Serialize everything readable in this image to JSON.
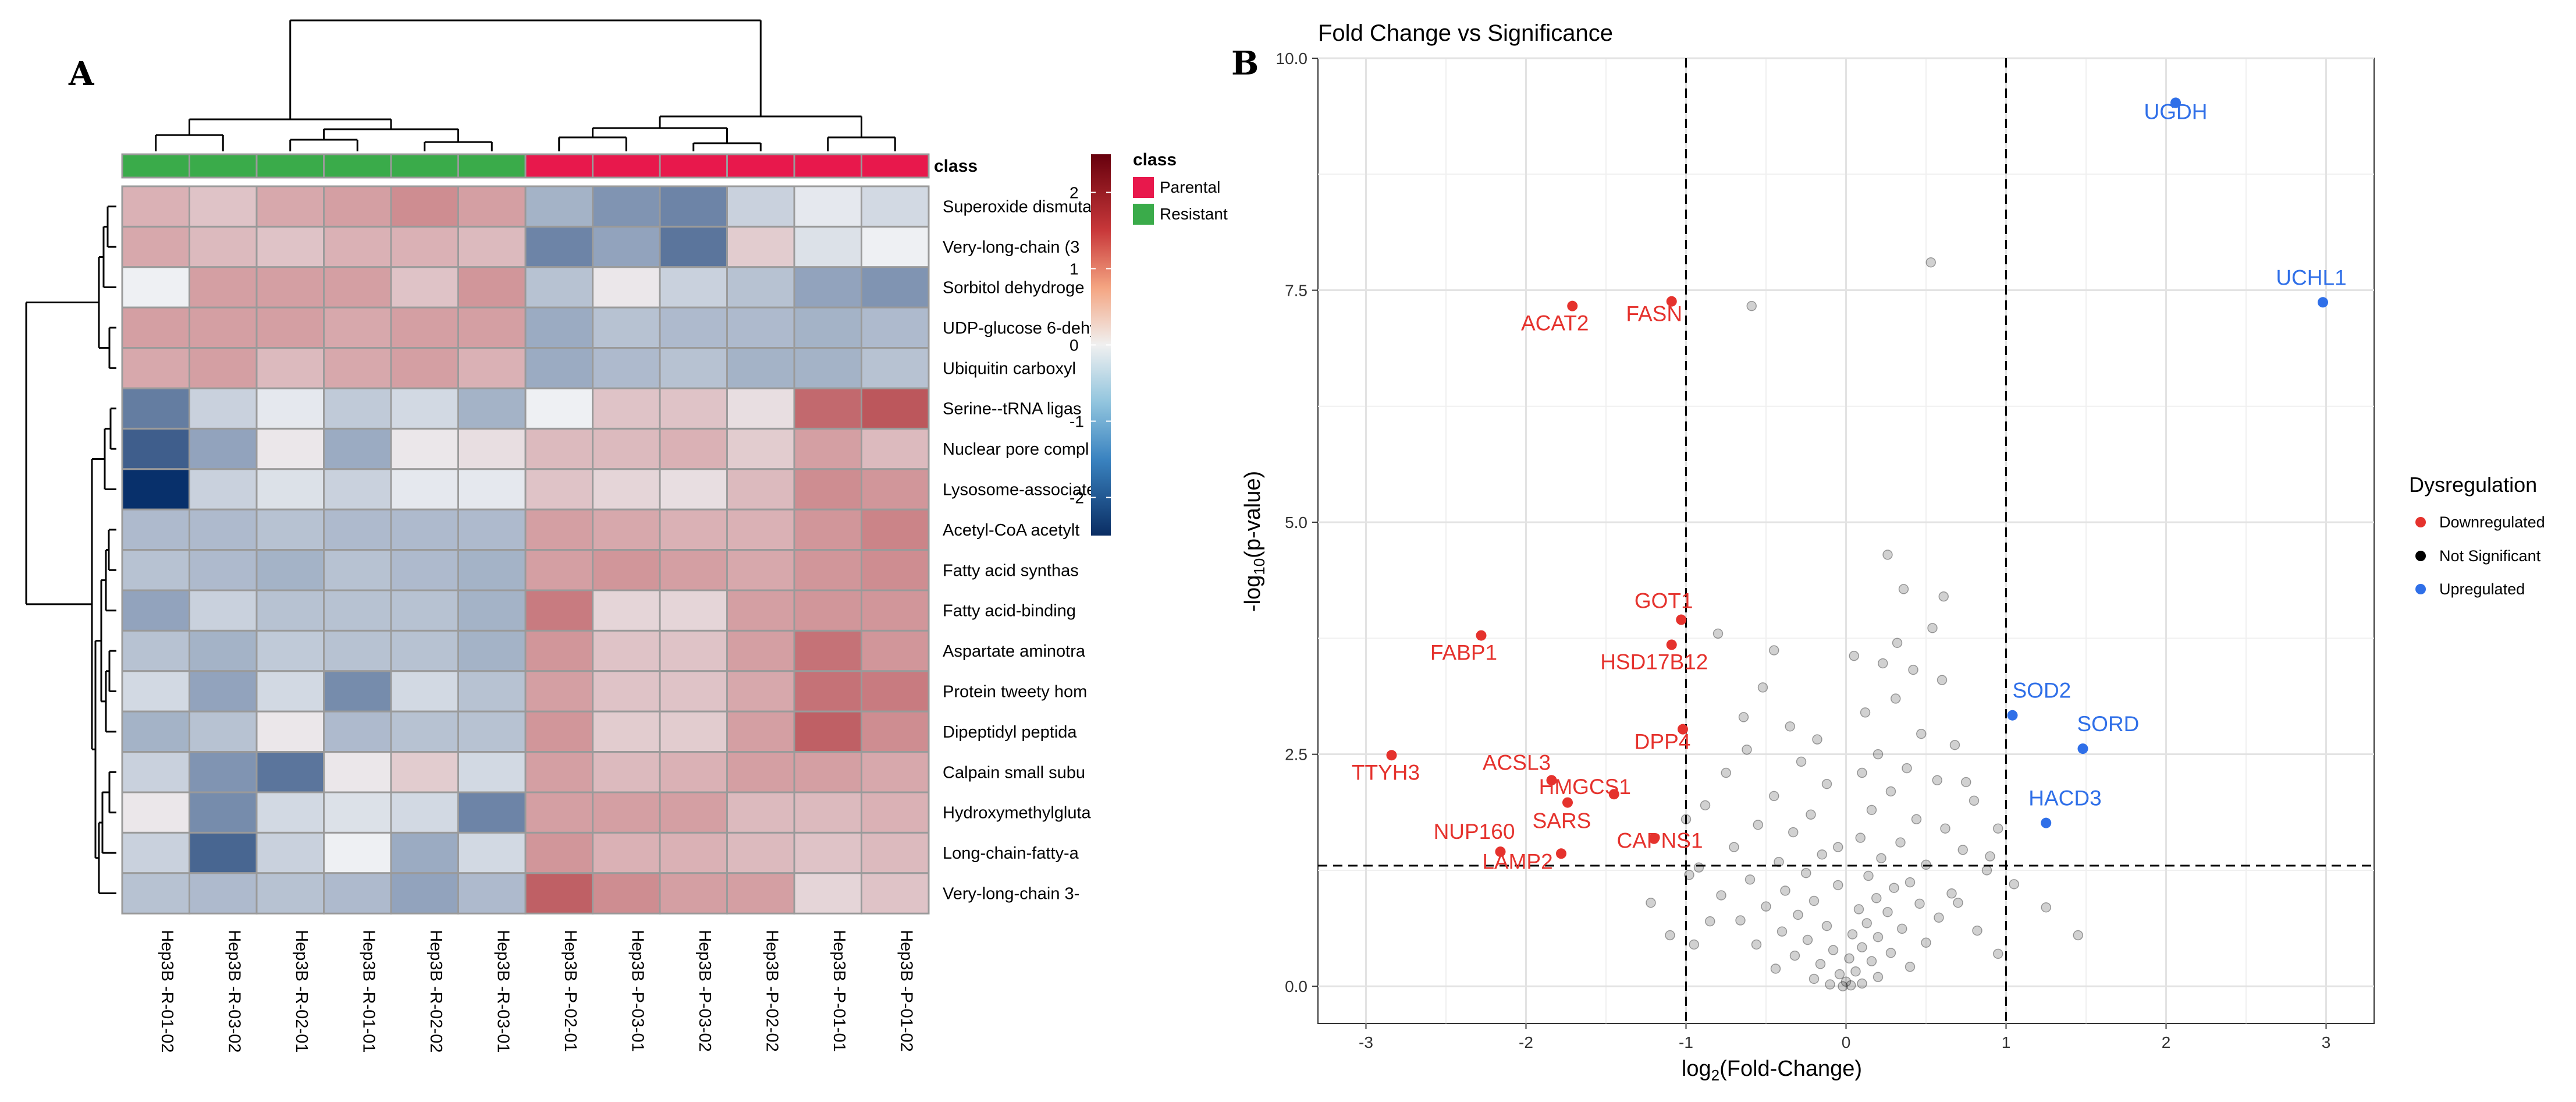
{
  "colors": {
    "parental": "#e8184c",
    "resistant": "#3aab4a",
    "down": "#e5322d",
    "up": "#2f6fe8",
    "ns": "#000000",
    "hm_low": "#08306b",
    "hm_mid": "#eef0f3",
    "hm_high": "#a50f15"
  },
  "chart_data": [
    {
      "type": "heatmap",
      "panel_letter": "A",
      "class_label": "class",
      "columns": [
        "Hep3B -R-01-02",
        "Hep3B -R-03-02",
        "Hep3B -R-02-01",
        "Hep3B -R-01-01",
        "Hep3B -R-02-02",
        "Hep3B -R-03-01",
        "Hep3B -P-02-01",
        "Hep3B -P-03-01",
        "Hep3B -P-03-02",
        "Hep3B -P-02-02",
        "Hep3B -P-01-01",
        "Hep3B -P-01-02"
      ],
      "column_classes": [
        "Resistant",
        "Resistant",
        "Resistant",
        "Resistant",
        "Resistant",
        "Resistant",
        "Parental",
        "Parental",
        "Parental",
        "Parental",
        "Parental",
        "Parental"
      ],
      "rows": [
        "Superoxide dismuta",
        "Very-long-chain (3",
        "Sorbitol dehydroge",
        "UDP-glucose 6-dehy",
        "Ubiquitin carboxyl",
        "Serine--tRNA ligas",
        "Nuclear pore compl",
        "Lysosome-associate",
        "Acetyl-CoA acetylt",
        "Fatty acid synthas",
        "Fatty acid-binding",
        "Aspartate aminotra",
        "Protein tweety hom",
        "Dipeptidyl peptida",
        "Calpain small subu",
        "Hydroxymethylgluta",
        "Long-chain-fatty-a",
        "Very-long-chain 3-"
      ],
      "values": [
        [
          0.7,
          0.5,
          0.8,
          0.9,
          1.1,
          0.9,
          -0.8,
          -1.2,
          -1.4,
          -0.4,
          -0.1,
          -0.3
        ],
        [
          0.8,
          0.6,
          0.5,
          0.7,
          0.7,
          0.6,
          -1.4,
          -1.0,
          -1.6,
          0.4,
          -0.2,
          0.0
        ],
        [
          0.0,
          0.9,
          0.9,
          0.9,
          0.5,
          1.0,
          -0.6,
          0.1,
          -0.4,
          -0.6,
          -1.0,
          -1.2
        ],
        [
          0.9,
          0.9,
          0.9,
          0.8,
          0.9,
          0.9,
          -0.9,
          -0.6,
          -0.7,
          -0.7,
          -0.8,
          -0.7
        ],
        [
          0.8,
          0.9,
          0.6,
          0.8,
          0.9,
          0.7,
          -0.9,
          -0.7,
          -0.6,
          -0.8,
          -0.8,
          -0.6
        ],
        [
          -1.5,
          -0.4,
          -0.1,
          -0.5,
          -0.3,
          -0.8,
          0.0,
          0.5,
          0.5,
          0.2,
          1.5,
          1.7
        ],
        [
          -1.9,
          -1.0,
          0.1,
          -0.9,
          0.1,
          0.2,
          0.6,
          0.6,
          0.7,
          0.4,
          0.9,
          0.6
        ],
        [
          -2.5,
          -0.4,
          -0.2,
          -0.4,
          -0.1,
          -0.1,
          0.5,
          0.3,
          0.2,
          0.6,
          1.1,
          1.0
        ],
        [
          -0.7,
          -0.7,
          -0.6,
          -0.7,
          -0.7,
          -0.7,
          0.9,
          0.8,
          0.7,
          0.7,
          1.0,
          1.2
        ],
        [
          -0.6,
          -0.7,
          -0.8,
          -0.6,
          -0.7,
          -0.8,
          0.9,
          1.0,
          0.9,
          0.8,
          1.0,
          1.1
        ],
        [
          -1.0,
          -0.4,
          -0.6,
          -0.6,
          -0.6,
          -0.8,
          1.3,
          0.3,
          0.3,
          0.9,
          1.0,
          1.0
        ],
        [
          -0.6,
          -0.8,
          -0.5,
          -0.6,
          -0.6,
          -0.8,
          1.0,
          0.5,
          0.5,
          0.9,
          1.4,
          1.0
        ],
        [
          -0.3,
          -1.0,
          -0.3,
          -1.3,
          -0.3,
          -0.6,
          0.9,
          0.5,
          0.5,
          0.8,
          1.4,
          1.3
        ],
        [
          -0.8,
          -0.6,
          0.1,
          -0.7,
          -0.6,
          -0.6,
          1.0,
          0.4,
          0.4,
          0.9,
          1.6,
          1.1
        ],
        [
          -0.4,
          -1.2,
          -1.6,
          0.1,
          0.4,
          -0.3,
          0.9,
          0.6,
          0.7,
          0.9,
          0.9,
          0.8
        ],
        [
          0.1,
          -1.3,
          -0.3,
          -0.2,
          -0.3,
          -1.4,
          0.9,
          0.9,
          0.9,
          0.6,
          0.6,
          0.7
        ],
        [
          -0.4,
          -1.8,
          -0.4,
          0.0,
          -0.9,
          -0.3,
          1.0,
          0.7,
          0.7,
          0.6,
          0.5,
          0.6
        ],
        [
          -0.6,
          -0.7,
          -0.6,
          -0.7,
          -1.0,
          -0.7,
          1.6,
          1.1,
          0.9,
          0.9,
          0.3,
          0.5
        ]
      ],
      "color_scale": {
        "min": -2.5,
        "max": 2.5,
        "ticks": [
          2,
          1,
          0,
          -1,
          -2
        ]
      },
      "class_legend": {
        "title": "class",
        "entries": [
          "Parental",
          "Resistant"
        ]
      }
    },
    {
      "type": "scatter",
      "panel_letter": "B",
      "title": "Fold Change vs Significance",
      "xlabel_main": "log",
      "xlabel_sub": "2",
      "xlabel_tail": "(Fold-Change)",
      "ylabel_main": "-log",
      "ylabel_sub": "10",
      "ylabel_tail": "(p-value)",
      "xlim": [
        -3.3,
        3.3
      ],
      "ylim": [
        -0.4,
        10.0
      ],
      "xticks": [
        -3,
        -2,
        -1,
        0,
        1,
        2,
        3
      ],
      "yticks": [
        0.0,
        2.5,
        5.0,
        7.5,
        10.0
      ],
      "ytick_labels": [
        "0.0",
        "2.5",
        "5.0",
        "7.5",
        "10.0"
      ],
      "vlines": [
        -1,
        1
      ],
      "hline": 1.3,
      "legend": {
        "title": "Dysregulation",
        "entries": [
          "Downregulated",
          "Not Significant",
          "Upregulated"
        ]
      },
      "labeled_points": [
        {
          "label": "UGDH",
          "x": 2.06,
          "y": 9.52,
          "group": "up"
        },
        {
          "label": "UCHL1",
          "x": 2.98,
          "y": 7.37,
          "group": "up"
        },
        {
          "label": "SOD2",
          "x": 1.04,
          "y": 2.92,
          "group": "up"
        },
        {
          "label": "SORD",
          "x": 1.48,
          "y": 2.56,
          "group": "up"
        },
        {
          "label": "HACD3",
          "x": 1.25,
          "y": 1.76,
          "group": "up"
        },
        {
          "label": "ACAT2",
          "x": -1.71,
          "y": 7.33,
          "group": "down"
        },
        {
          "label": "FASN",
          "x": -1.09,
          "y": 7.38,
          "group": "down"
        },
        {
          "label": "GOT1",
          "x": -1.03,
          "y": 3.95,
          "group": "down"
        },
        {
          "label": "FABP1",
          "x": -2.28,
          "y": 3.78,
          "group": "down"
        },
        {
          "label": "HSD17B12",
          "x": -1.09,
          "y": 3.68,
          "group": "down"
        },
        {
          "label": "DPP4",
          "x": -1.02,
          "y": 2.77,
          "group": "down"
        },
        {
          "label": "TTYH3",
          "x": -2.84,
          "y": 2.49,
          "group": "down"
        },
        {
          "label": "ACSL3",
          "x": -1.84,
          "y": 2.22,
          "group": "down"
        },
        {
          "label": "HMGCS1",
          "x": -1.45,
          "y": 2.07,
          "group": "down"
        },
        {
          "label": "SARS",
          "x": -1.74,
          "y": 1.98,
          "group": "down"
        },
        {
          "label": "CAPNS1",
          "x": -1.2,
          "y": 1.59,
          "group": "down"
        },
        {
          "label": "NUP160",
          "x": -2.16,
          "y": 1.45,
          "group": "down"
        },
        {
          "label": "LAMP2",
          "x": -1.78,
          "y": 1.43,
          "group": "down"
        }
      ],
      "ns_points": [
        [
          0.53,
          7.8
        ],
        [
          -0.59,
          7.33
        ],
        [
          0.26,
          4.65
        ],
        [
          0.36,
          4.28
        ],
        [
          0.61,
          4.2
        ],
        [
          -0.8,
          3.8
        ],
        [
          0.54,
          3.86
        ],
        [
          -0.45,
          3.62
        ],
        [
          0.05,
          3.56
        ],
        [
          0.23,
          3.48
        ],
        [
          0.42,
          3.41
        ],
        [
          -0.52,
          3.22
        ],
        [
          0.31,
          3.1
        ],
        [
          0.12,
          2.95
        ],
        [
          -0.35,
          2.8
        ],
        [
          0.47,
          2.72
        ],
        [
          -0.18,
          2.66
        ],
        [
          0.68,
          2.6
        ],
        [
          -0.62,
          2.55
        ],
        [
          0.2,
          2.5
        ],
        [
          -0.28,
          2.42
        ],
        [
          0.38,
          2.35
        ],
        [
          -0.75,
          2.3
        ],
        [
          0.57,
          2.22
        ],
        [
          -0.12,
          2.18
        ],
        [
          0.28,
          2.1
        ],
        [
          -0.45,
          2.05
        ],
        [
          0.8,
          2.0
        ],
        [
          -0.88,
          1.95
        ],
        [
          0.16,
          1.9
        ],
        [
          -0.22,
          1.85
        ],
        [
          0.44,
          1.8
        ],
        [
          -0.55,
          1.74
        ],
        [
          0.62,
          1.7
        ],
        [
          -0.33,
          1.66
        ],
        [
          0.09,
          1.6
        ],
        [
          0.34,
          1.55
        ],
        [
          -0.7,
          1.5
        ],
        [
          0.73,
          1.47
        ],
        [
          -0.15,
          1.42
        ],
        [
          0.22,
          1.38
        ],
        [
          -0.42,
          1.34
        ],
        [
          0.5,
          1.31
        ],
        [
          -0.92,
          1.28
        ],
        [
          0.88,
          1.25
        ],
        [
          -0.25,
          1.22
        ],
        [
          0.14,
          1.19
        ],
        [
          -0.6,
          1.15
        ],
        [
          0.4,
          1.12
        ],
        [
          -0.05,
          1.09
        ],
        [
          0.3,
          1.06
        ],
        [
          -0.38,
          1.03
        ],
        [
          0.66,
          1.0
        ],
        [
          -0.78,
          0.98
        ],
        [
          0.19,
          0.95
        ],
        [
          -0.2,
          0.92
        ],
        [
          0.46,
          0.89
        ],
        [
          -0.5,
          0.86
        ],
        [
          0.08,
          0.83
        ],
        [
          0.26,
          0.8
        ],
        [
          -0.3,
          0.77
        ],
        [
          0.58,
          0.74
        ],
        [
          -0.66,
          0.71
        ],
        [
          0.13,
          0.68
        ],
        [
          -0.12,
          0.65
        ],
        [
          0.35,
          0.62
        ],
        [
          -0.4,
          0.59
        ],
        [
          0.04,
          0.56
        ],
        [
          0.2,
          0.53
        ],
        [
          -0.24,
          0.5
        ],
        [
          0.5,
          0.47
        ],
        [
          -0.56,
          0.45
        ],
        [
          0.1,
          0.42
        ],
        [
          -0.08,
          0.39
        ],
        [
          0.28,
          0.36
        ],
        [
          -0.32,
          0.33
        ],
        [
          0.02,
          0.3
        ],
        [
          0.16,
          0.27
        ],
        [
          -0.16,
          0.24
        ],
        [
          0.4,
          0.21
        ],
        [
          -0.44,
          0.19
        ],
        [
          0.06,
          0.16
        ],
        [
          -0.04,
          0.13
        ],
        [
          0.2,
          0.1
        ],
        [
          -0.2,
          0.08
        ],
        [
          0.0,
          0.05
        ],
        [
          0.1,
          0.03
        ],
        [
          -0.1,
          0.02
        ],
        [
          0.03,
          0.01
        ],
        [
          -0.02,
          0.0
        ],
        [
          0.7,
          0.9
        ],
        [
          0.82,
          0.6
        ],
        [
          0.95,
          0.35
        ],
        [
          -0.85,
          0.7
        ],
        [
          -0.95,
          0.45
        ],
        [
          1.05,
          1.1
        ],
        [
          1.25,
          0.85
        ],
        [
          1.45,
          0.55
        ],
        [
          -1.22,
          0.9
        ],
        [
          -1.1,
          0.55
        ],
        [
          0.95,
          1.7
        ],
        [
          -1.0,
          1.8
        ],
        [
          0.6,
          3.3
        ],
        [
          -0.64,
          2.9
        ],
        [
          0.75,
          2.2
        ],
        [
          0.9,
          1.4
        ],
        [
          -0.98,
          1.2
        ],
        [
          0.32,
          3.7
        ],
        [
          0.1,
          2.3
        ],
        [
          -0.05,
          1.5
        ]
      ]
    }
  ]
}
